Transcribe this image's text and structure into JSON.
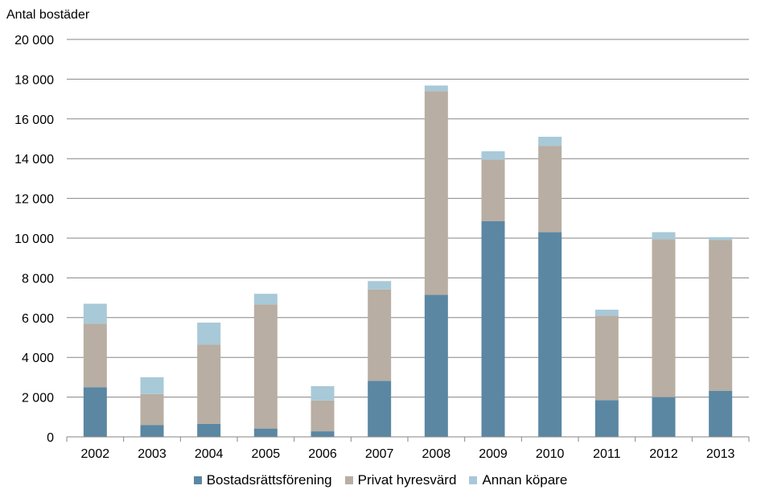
{
  "chart_data": {
    "type": "bar",
    "stacked": true,
    "ylabel": "Antal bostäder",
    "ylim": [
      0,
      20000
    ],
    "ytick_labels": [
      "0",
      "2 000",
      "4 000",
      "6 000",
      "8 000",
      "10 000",
      "12 000",
      "14 000",
      "16 000",
      "18 000",
      "20 000"
    ],
    "ytick_values": [
      0,
      2000,
      4000,
      6000,
      8000,
      10000,
      12000,
      14000,
      16000,
      18000,
      20000
    ],
    "grid": "horizontal",
    "legend_position": "bottom",
    "categories": [
      "2002",
      "2003",
      "2004",
      "2005",
      "2006",
      "2007",
      "2008",
      "2009",
      "2010",
      "2011",
      "2012",
      "2013"
    ],
    "series": [
      {
        "name": "Bostadsrättsförening",
        "color": "#5b87a3",
        "values": [
          2500,
          600,
          650,
          420,
          280,
          2820,
          7150,
          10850,
          10300,
          1850,
          2000,
          2320
        ]
      },
      {
        "name": "Privat hyresvärd",
        "color": "#b8aea3",
        "values": [
          3200,
          1550,
          4000,
          6250,
          1550,
          4600,
          10250,
          3100,
          4350,
          4250,
          7950,
          7580
        ]
      },
      {
        "name": "Annan köpare",
        "color": "#a8c9d8",
        "values": [
          1000,
          850,
          1100,
          530,
          720,
          420,
          280,
          420,
          450,
          300,
          350,
          150
        ]
      }
    ]
  }
}
